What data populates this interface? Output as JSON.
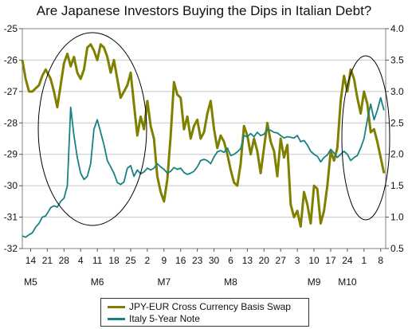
{
  "chart_data": {
    "type": "line",
    "title": "Are Japanese Investors Buying the Dips in Italian Debt?",
    "y_left": {
      "ticks": [
        -25,
        -26,
        -27,
        -28,
        -29,
        -30,
        -31,
        -32
      ],
      "min": -32,
      "max": -25
    },
    "y_right": {
      "ticks": [
        "4.0",
        "3.5",
        "3.0",
        "2.5",
        "2.0",
        "1.5",
        "1.0",
        "0.5"
      ],
      "min": 0.5,
      "max": 4.0
    },
    "x_tick_labels": [
      "14",
      "21",
      "28",
      "4",
      "11",
      "18",
      "25",
      "2",
      "9",
      "16",
      "23",
      "30",
      "6",
      "13",
      "20",
      "27",
      "3",
      "10",
      "17",
      "24",
      "1",
      "8"
    ],
    "month_labels": [
      "M5",
      "M6",
      "M7",
      "M8",
      "M9",
      "M10"
    ],
    "month_label_positions": [
      0.0,
      4.0,
      8.0,
      12.0,
      17.0,
      19.0
    ],
    "x_range": [
      -0.5,
      21.3
    ],
    "series": [
      {
        "name": "JPY-EUR Cross Currency Basis Swap",
        "axis": "left",
        "color": "#808000",
        "x": [
          -0.5,
          -0.3,
          -0.1,
          0.1,
          0.3,
          0.5,
          0.7,
          0.9,
          1.0,
          1.2,
          1.4,
          1.6,
          1.8,
          2.0,
          2.2,
          2.4,
          2.6,
          2.8,
          3.0,
          3.2,
          3.4,
          3.6,
          3.8,
          4.0,
          4.2,
          4.4,
          4.6,
          4.8,
          5.0,
          5.2,
          5.4,
          5.6,
          5.8,
          6.0,
          6.2,
          6.4,
          6.6,
          6.8,
          7.0,
          7.2,
          7.4,
          7.6,
          7.8,
          8.0,
          8.2,
          8.4,
          8.6,
          8.8,
          9.0,
          9.2,
          9.4,
          9.6,
          9.8,
          10.0,
          10.2,
          10.4,
          10.6,
          10.8,
          11.0,
          11.2,
          11.4,
          11.6,
          11.8,
          12.0,
          12.2,
          12.4,
          12.6,
          12.8,
          13.0,
          13.2,
          13.4,
          13.6,
          13.8,
          14.0,
          14.2,
          14.4,
          14.6,
          14.8,
          15.0,
          15.2,
          15.4,
          15.6,
          15.8,
          16.0,
          16.2,
          16.4,
          16.6,
          16.8,
          17.0,
          17.2,
          17.4,
          17.6,
          17.8,
          18.0,
          18.2,
          18.4,
          18.6,
          18.8,
          19.0,
          19.2,
          19.4,
          19.6,
          19.8,
          20.0,
          20.2,
          20.4,
          20.6,
          20.8,
          21.0,
          21.2
        ],
        "y": [
          -26.0,
          -26.6,
          -27.0,
          -27.0,
          -26.9,
          -26.8,
          -26.5,
          -26.3,
          -26.4,
          -26.6,
          -27.0,
          -27.5,
          -26.8,
          -26.1,
          -25.8,
          -26.2,
          -25.9,
          -26.4,
          -26.6,
          -26.3,
          -25.6,
          -25.5,
          -25.7,
          -26.0,
          -25.5,
          -25.6,
          -25.9,
          -26.4,
          -26.0,
          -26.6,
          -27.2,
          -27.0,
          -26.8,
          -26.4,
          -27.4,
          -28.4,
          -27.8,
          -28.2,
          -27.3,
          -28.1,
          -28.5,
          -29.7,
          -30.2,
          -30.5,
          -29.8,
          -28.4,
          -26.7,
          -27.1,
          -27.2,
          -28.2,
          -27.8,
          -28.5,
          -28.1,
          -27.9,
          -28.5,
          -28.3,
          -27.7,
          -27.3,
          -28.2,
          -28.8,
          -28.4,
          -28.6,
          -29.0,
          -29.5,
          -29.9,
          -30.0,
          -29.3,
          -28.1,
          -28.4,
          -29.0,
          -28.5,
          -28.9,
          -29.6,
          -28.8,
          -28.0,
          -28.6,
          -28.9,
          -29.7,
          -28.5,
          -29.1,
          -28.7,
          -30.6,
          -31.0,
          -30.8,
          -31.3,
          -30.2,
          -30.6,
          -31.2,
          -30.0,
          -30.1,
          -31.2,
          -30.8,
          -30.0,
          -28.9,
          -29.2,
          -28.8,
          -27.3,
          -26.5,
          -27.0,
          -26.3,
          -26.6,
          -27.2,
          -27.7,
          -27.0,
          -27.4,
          -28.3,
          -28.2,
          -28.6,
          -29.1,
          -29.6
        ]
      },
      {
        "name": "Italy 5-Year Note",
        "axis": "right",
        "color": "#178282",
        "x": [
          -0.5,
          -0.3,
          -0.1,
          0.1,
          0.3,
          0.5,
          0.7,
          0.9,
          1.0,
          1.2,
          1.4,
          1.6,
          1.8,
          2.0,
          2.2,
          2.4,
          2.6,
          2.8,
          3.0,
          3.2,
          3.4,
          3.6,
          3.8,
          4.0,
          4.2,
          4.4,
          4.6,
          4.8,
          5.0,
          5.2,
          5.4,
          5.6,
          5.8,
          6.0,
          6.2,
          6.4,
          6.6,
          6.8,
          7.0,
          7.2,
          7.4,
          7.6,
          7.8,
          8.0,
          8.2,
          8.4,
          8.6,
          8.8,
          9.0,
          9.2,
          9.4,
          9.6,
          9.8,
          10.0,
          10.2,
          10.4,
          10.6,
          10.8,
          11.0,
          11.2,
          11.4,
          11.6,
          11.8,
          12.0,
          12.2,
          12.4,
          12.6,
          12.8,
          13.0,
          13.2,
          13.4,
          13.6,
          13.8,
          14.0,
          14.2,
          14.4,
          14.6,
          14.8,
          15.0,
          15.2,
          15.4,
          15.6,
          15.8,
          16.0,
          16.2,
          16.4,
          16.6,
          16.8,
          17.0,
          17.2,
          17.4,
          17.6,
          17.8,
          18.0,
          18.2,
          18.4,
          18.6,
          18.8,
          19.0,
          19.2,
          19.4,
          19.6,
          19.8,
          20.0,
          20.2,
          20.4,
          20.6,
          20.8,
          21.0,
          21.2
        ],
        "y": [
          0.7,
          0.68,
          0.72,
          0.75,
          0.84,
          0.9,
          1.0,
          1.02,
          1.06,
          1.15,
          1.18,
          1.16,
          1.25,
          1.3,
          1.5,
          2.75,
          2.3,
          1.95,
          1.7,
          1.6,
          1.65,
          1.85,
          2.4,
          2.55,
          2.35,
          2.15,
          1.9,
          1.8,
          1.7,
          1.55,
          1.52,
          1.56,
          1.78,
          1.82,
          1.65,
          1.75,
          1.69,
          1.72,
          1.78,
          1.75,
          1.78,
          1.85,
          1.8,
          1.76,
          1.7,
          1.73,
          1.79,
          1.76,
          1.78,
          1.71,
          1.68,
          1.7,
          1.73,
          1.8,
          1.9,
          1.92,
          1.9,
          1.85,
          1.96,
          2.04,
          2.06,
          2.03,
          2.1,
          1.98,
          2.0,
          2.04,
          2.09,
          2.3,
          2.28,
          2.33,
          2.28,
          2.35,
          2.3,
          2.32,
          2.4,
          2.38,
          2.35,
          2.34,
          2.3,
          2.26,
          2.28,
          2.27,
          2.26,
          2.3,
          2.2,
          2.22,
          2.15,
          2.05,
          2.0,
          1.97,
          1.88,
          1.95,
          1.99,
          2.08,
          2.02,
          1.95,
          2.0,
          2.05,
          2.0,
          1.9,
          1.95,
          1.98,
          2.1,
          2.25,
          2.55,
          2.8,
          2.55,
          2.7,
          2.9,
          2.7
        ]
      }
    ],
    "annotations": [
      "ellipse around M5-M6 peak",
      "ellipse around M9-M10 peak"
    ],
    "grid": "horizontal",
    "legend_position": "bottom"
  }
}
